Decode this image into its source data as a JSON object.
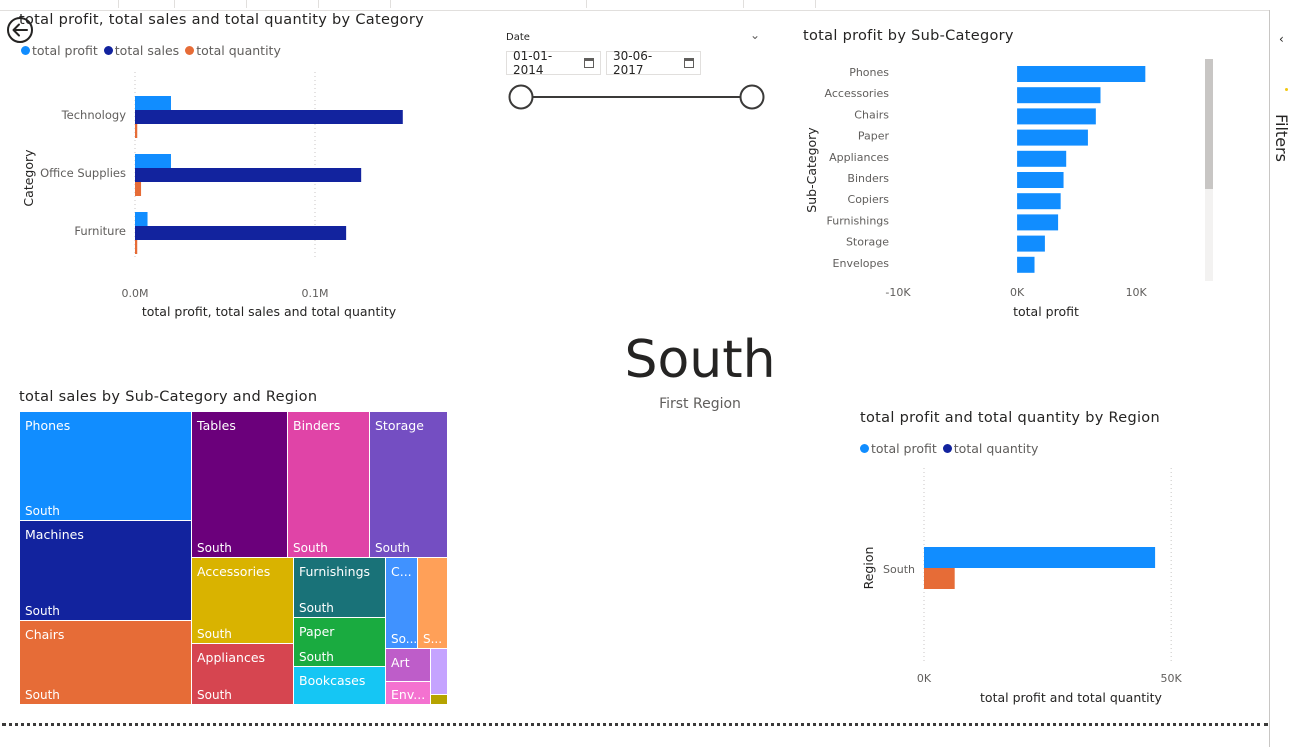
{
  "colors": {
    "total_profit": "#118DFF",
    "total_sales": "#12239E",
    "total_quantity": "#E66C37",
    "axis_text": "#605e5c",
    "gridline": "#c8c6c4"
  },
  "back_button": {
    "icon": "back-arrow-icon"
  },
  "filters_pane": {
    "label": "Filters",
    "icon": "chevron-left-icon"
  },
  "category_chart": {
    "title": "total profit, total sales and total quantity by Category",
    "legend": [
      "total profit",
      "total sales",
      "total quantity"
    ],
    "chart_data": {
      "type": "bar",
      "orientation": "horizontal",
      "categories": [
        "Technology",
        "Office Supplies",
        "Furniture"
      ],
      "series": [
        {
          "name": "total profit",
          "values": [
            19991,
            19987,
            6959
          ]
        },
        {
          "name": "total sales",
          "values": [
            148772,
            125651,
            117299
          ]
        },
        {
          "name": "total quantity",
          "values": [
            1251,
            3363,
            1240
          ]
        }
      ],
      "xlabel": "total profit, total sales and total quantity",
      "ylabel": "Category",
      "xlim": [
        0,
        150000
      ],
      "xticks": [
        {
          "value": 0,
          "label": "0.0M"
        },
        {
          "value": 100000,
          "label": "0.1M"
        }
      ],
      "grid": true,
      "legend_position": "top-left"
    }
  },
  "date_slicer": {
    "label": "Date",
    "start": "01-01-2014",
    "end": "30-06-2017",
    "start_fraction": 0,
    "end_fraction": 1
  },
  "subcategory_chart": {
    "title": "total profit by Sub-Category",
    "chart_data": {
      "type": "bar",
      "orientation": "horizontal",
      "categories": [
        "Phones",
        "Accessories",
        "Chairs",
        "Paper",
        "Appliances",
        "Binders",
        "Copiers",
        "Furnishings",
        "Storage",
        "Envelopes"
      ],
      "values": [
        10767,
        7004,
        6612,
        5947,
        4124,
        3901,
        3658,
        3443,
        2335,
        1463
      ],
      "xlabel": "total profit",
      "ylabel": "Sub-Category",
      "xlim": [
        -10000,
        12000
      ],
      "xticks": [
        {
          "value": -10000,
          "label": "-10K"
        },
        {
          "value": 0,
          "label": "0K"
        },
        {
          "value": 10000,
          "label": "10K"
        }
      ],
      "grid": false
    }
  },
  "card": {
    "value": "South",
    "label": "First Region"
  },
  "treemap": {
    "title": "total sales by Sub-Category and Region",
    "chart_data": {
      "type": "treemap",
      "tiles": [
        {
          "label": "Phones",
          "region": "South",
          "color": "#118DFF"
        },
        {
          "label": "Machines",
          "region": "South",
          "color": "#12239E"
        },
        {
          "label": "Chairs",
          "region": "South",
          "color": "#E66C37"
        },
        {
          "label": "Tables",
          "region": "South",
          "color": "#6B007B"
        },
        {
          "label": "Binders",
          "region": "South",
          "color": "#E044A7"
        },
        {
          "label": "Storage",
          "region": "South",
          "color": "#744EC2"
        },
        {
          "label": "Accessories",
          "region": "South",
          "color": "#D9B300"
        },
        {
          "label": "Appliances",
          "region": "South",
          "color": "#D64550"
        },
        {
          "label": "Furnishings",
          "region": "South",
          "color": "#197278"
        },
        {
          "label": "Paper",
          "region": "South",
          "color": "#1AAB40"
        },
        {
          "label": "Bookcases",
          "region": "",
          "color": "#15C6F4"
        },
        {
          "label": "C...",
          "region": "So...",
          "color": "#4092FF"
        },
        {
          "label": "",
          "region": "S...",
          "color": "#FFA058"
        },
        {
          "label": "Art",
          "region": "",
          "color": "#BE5DC9"
        },
        {
          "label": "Env...",
          "region": "",
          "color": "#F472D0"
        },
        {
          "label": "",
          "region": "",
          "color": "#C5A3FF"
        },
        {
          "label": "",
          "region": "",
          "color": "#B5A300"
        }
      ]
    }
  },
  "region_chart": {
    "title": "total profit and total quantity by Region",
    "legend": [
      "total profit",
      "total quantity"
    ],
    "chart_data": {
      "type": "bar",
      "orientation": "horizontal",
      "categories": [
        "South"
      ],
      "series": [
        {
          "name": "total profit",
          "values": [
            46749
          ]
        },
        {
          "name": "total quantity",
          "values": [
            6209
          ]
        }
      ],
      "xlabel": "total profit and total quantity",
      "ylabel": "Region",
      "xlim": [
        0,
        53000
      ],
      "xticks": [
        {
          "value": 0,
          "label": "0K"
        },
        {
          "value": 50000,
          "label": "50K"
        }
      ],
      "grid": true,
      "legend_position": "top-left"
    }
  }
}
